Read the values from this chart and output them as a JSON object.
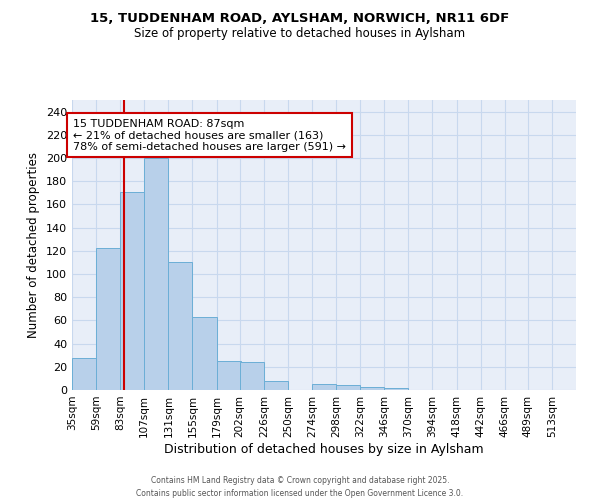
{
  "title1": "15, TUDDENHAM ROAD, AYLSHAM, NORWICH, NR11 6DF",
  "title2": "Size of property relative to detached houses in Aylsham",
  "xlabel": "Distribution of detached houses by size in Aylsham",
  "ylabel": "Number of detached properties",
  "bin_labels": [
    "35sqm",
    "59sqm",
    "83sqm",
    "107sqm",
    "131sqm",
    "155sqm",
    "179sqm",
    "202sqm",
    "226sqm",
    "250sqm",
    "274sqm",
    "298sqm",
    "322sqm",
    "346sqm",
    "370sqm",
    "394sqm",
    "418sqm",
    "442sqm",
    "466sqm",
    "489sqm",
    "513sqm"
  ],
  "bin_edges": [
    35,
    59,
    83,
    107,
    131,
    155,
    179,
    202,
    226,
    250,
    274,
    298,
    322,
    346,
    370,
    394,
    418,
    442,
    466,
    489,
    513
  ],
  "counts": [
    28,
    122,
    171,
    200,
    110,
    63,
    25,
    24,
    8,
    0,
    5,
    4,
    3,
    2,
    0,
    0,
    0,
    0,
    0,
    0
  ],
  "bar_color": "#b8d0ea",
  "bar_edgecolor": "#6baed6",
  "property_value": 87,
  "vline_color": "#cc0000",
  "annotation_text": "15 TUDDENHAM ROAD: 87sqm\n← 21% of detached houses are smaller (163)\n78% of semi-detached houses are larger (591) →",
  "annotation_box_color": "#cc0000",
  "ylim": [
    0,
    250
  ],
  "yticks": [
    0,
    20,
    40,
    60,
    80,
    100,
    120,
    140,
    160,
    180,
    200,
    220,
    240
  ],
  "grid_color": "#c8d8ee",
  "bg_color": "#e8eef8",
  "footer": "Contains HM Land Registry data © Crown copyright and database right 2025.\nContains public sector information licensed under the Open Government Licence 3.0."
}
